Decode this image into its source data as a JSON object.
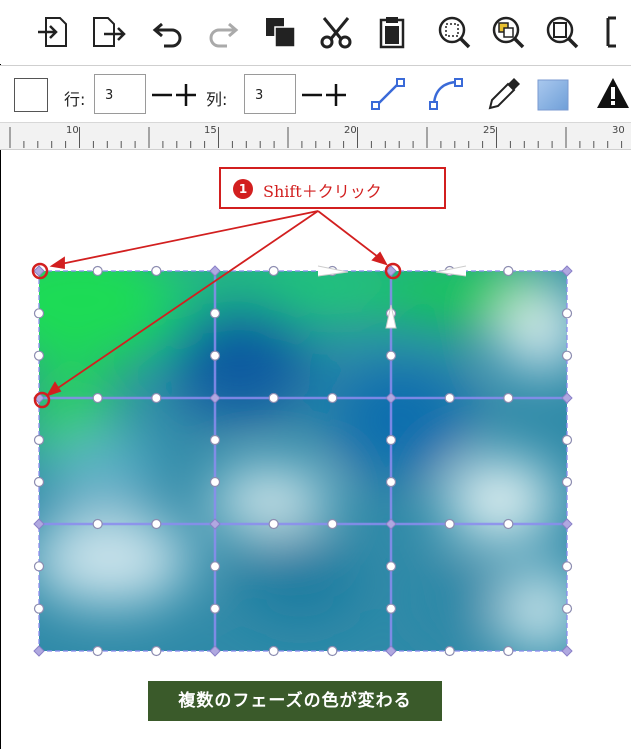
{
  "toolbar2": {
    "row_label": "行:",
    "row_value": "3",
    "col_label": "列:",
    "col_value": "3"
  },
  "ruler": {
    "labels": [
      "10",
      "15",
      "20",
      "25",
      "30"
    ]
  },
  "callout": {
    "number": "1",
    "text": "Shift＋クリック"
  },
  "caption": {
    "text": "複数のフェーズの色が変わる"
  },
  "colors": {
    "callout_red": "#d21f1f",
    "caption_bg": "#3a5a2a",
    "mesh_green": "#1fdc55",
    "mesh_blue": "#0a6aa8",
    "mesh_line": "#8c8cf0"
  }
}
